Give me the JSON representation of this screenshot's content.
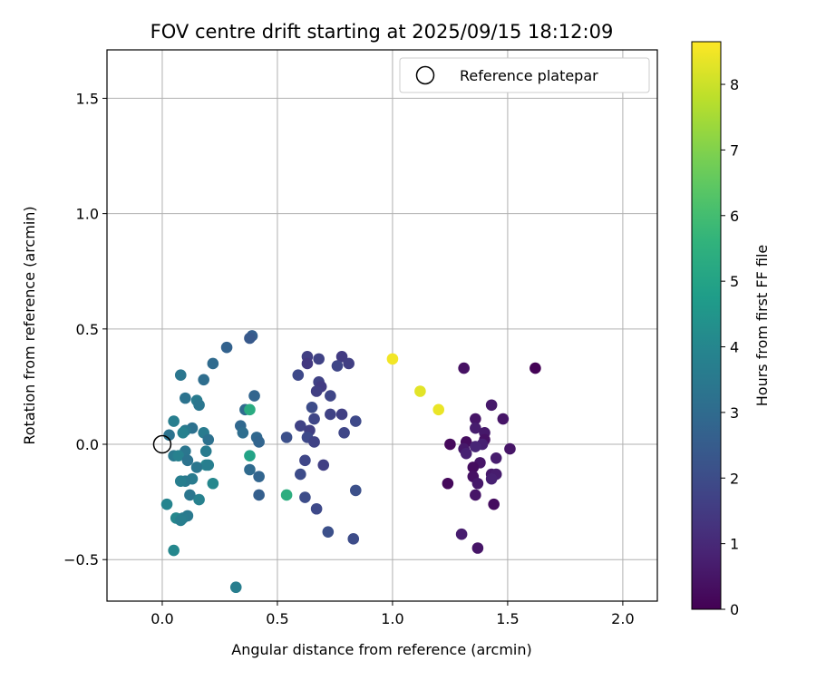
{
  "chart_data": {
    "type": "scatter",
    "title": "FOV centre drift starting at 2025/09/15 18:12:09",
    "xlabel": "Angular distance from reference (arcmin)",
    "ylabel": "Rotation from reference (arcmin)",
    "xlim": [
      -0.24,
      2.15
    ],
    "ylim": [
      -0.68,
      1.71
    ],
    "xticks": [
      0.0,
      0.5,
      1.0,
      1.5,
      2.0
    ],
    "xtick_labels": [
      "0.0",
      "0.5",
      "1.0",
      "1.5",
      "2.0"
    ],
    "yticks": [
      -0.5,
      0.0,
      0.5,
      1.0,
      1.5
    ],
    "ytick_labels": [
      "−0.5",
      "0.0",
      "0.5",
      "1.0",
      "1.5"
    ],
    "grid": true,
    "legend": {
      "position": "top-right",
      "entries": [
        "Reference platepar"
      ]
    },
    "reference_point": {
      "x": 0.0,
      "y": 0.0,
      "label": "Reference platepar"
    },
    "colorbar": {
      "label": "Hours from first FF file",
      "colormap": "viridis",
      "range": [
        0,
        8.65
      ],
      "ticks": [
        0,
        1,
        2,
        3,
        4,
        5,
        6,
        7,
        8
      ],
      "tick_labels": [
        "0",
        "1",
        "2",
        "3",
        "4",
        "5",
        "6",
        "7",
        "8"
      ]
    },
    "points": [
      {
        "x": 1.62,
        "y": 0.33,
        "h": 0.05
      },
      {
        "x": 1.31,
        "y": 0.33,
        "h": 0.4
      },
      {
        "x": 1.43,
        "y": 0.17,
        "h": 0.6
      },
      {
        "x": 1.48,
        "y": 0.11,
        "h": 0.5
      },
      {
        "x": 1.36,
        "y": 0.11,
        "h": 0.5
      },
      {
        "x": 1.36,
        "y": 0.07,
        "h": 0.7
      },
      {
        "x": 1.4,
        "y": 0.05,
        "h": 0.6
      },
      {
        "x": 1.4,
        "y": 0.02,
        "h": 0.4
      },
      {
        "x": 1.32,
        "y": 0.01,
        "h": 0.3
      },
      {
        "x": 1.39,
        "y": 0.0,
        "h": 0.8
      },
      {
        "x": 1.25,
        "y": 0.0,
        "h": 0.2
      },
      {
        "x": 1.36,
        "y": -0.01,
        "h": 0.9
      },
      {
        "x": 1.31,
        "y": -0.02,
        "h": 0.6
      },
      {
        "x": 1.51,
        "y": -0.02,
        "h": 0.5
      },
      {
        "x": 1.32,
        "y": -0.04,
        "h": 0.8
      },
      {
        "x": 1.45,
        "y": -0.06,
        "h": 0.7
      },
      {
        "x": 1.38,
        "y": -0.08,
        "h": 0.5
      },
      {
        "x": 1.35,
        "y": -0.1,
        "h": 0.3
      },
      {
        "x": 1.43,
        "y": -0.13,
        "h": 0.6
      },
      {
        "x": 1.45,
        "y": -0.13,
        "h": 0.7
      },
      {
        "x": 1.35,
        "y": -0.14,
        "h": 0.4
      },
      {
        "x": 1.43,
        "y": -0.15,
        "h": 0.8
      },
      {
        "x": 1.24,
        "y": -0.17,
        "h": 0.2
      },
      {
        "x": 1.37,
        "y": -0.17,
        "h": 0.6
      },
      {
        "x": 1.36,
        "y": -0.22,
        "h": 0.5
      },
      {
        "x": 1.44,
        "y": -0.26,
        "h": 0.3
      },
      {
        "x": 1.3,
        "y": -0.39,
        "h": 0.7
      },
      {
        "x": 1.37,
        "y": -0.45,
        "h": 0.5
      },
      {
        "x": 1.0,
        "y": 0.37,
        "h": 8.5
      },
      {
        "x": 1.12,
        "y": 0.23,
        "h": 8.3
      },
      {
        "x": 1.2,
        "y": 0.15,
        "h": 8.4
      },
      {
        "x": 0.63,
        "y": 0.38,
        "h": 1.6
      },
      {
        "x": 0.78,
        "y": 0.38,
        "h": 1.5
      },
      {
        "x": 0.68,
        "y": 0.37,
        "h": 1.7
      },
      {
        "x": 0.63,
        "y": 0.35,
        "h": 1.4
      },
      {
        "x": 0.81,
        "y": 0.35,
        "h": 1.6
      },
      {
        "x": 0.76,
        "y": 0.34,
        "h": 1.8
      },
      {
        "x": 0.59,
        "y": 0.3,
        "h": 1.9
      },
      {
        "x": 0.68,
        "y": 0.27,
        "h": 1.7
      },
      {
        "x": 0.69,
        "y": 0.25,
        "h": 1.5
      },
      {
        "x": 0.67,
        "y": 0.23,
        "h": 1.6
      },
      {
        "x": 0.73,
        "y": 0.21,
        "h": 1.8
      },
      {
        "x": 0.65,
        "y": 0.16,
        "h": 2.0
      },
      {
        "x": 0.73,
        "y": 0.13,
        "h": 1.7
      },
      {
        "x": 0.78,
        "y": 0.13,
        "h": 1.6
      },
      {
        "x": 0.66,
        "y": 0.11,
        "h": 1.8
      },
      {
        "x": 0.84,
        "y": 0.1,
        "h": 1.9
      },
      {
        "x": 0.6,
        "y": 0.08,
        "h": 1.7
      },
      {
        "x": 0.64,
        "y": 0.06,
        "h": 1.6
      },
      {
        "x": 0.79,
        "y": 0.05,
        "h": 1.8
      },
      {
        "x": 0.54,
        "y": 0.03,
        "h": 2.1
      },
      {
        "x": 0.63,
        "y": 0.03,
        "h": 1.9
      },
      {
        "x": 0.66,
        "y": 0.01,
        "h": 1.7
      },
      {
        "x": 0.62,
        "y": -0.07,
        "h": 1.8
      },
      {
        "x": 0.7,
        "y": -0.09,
        "h": 1.6
      },
      {
        "x": 0.6,
        "y": -0.13,
        "h": 2.0
      },
      {
        "x": 0.84,
        "y": -0.2,
        "h": 2.1
      },
      {
        "x": 0.62,
        "y": -0.23,
        "h": 2.0
      },
      {
        "x": 0.67,
        "y": -0.28,
        "h": 1.9
      },
      {
        "x": 0.72,
        "y": -0.38,
        "h": 2.1
      },
      {
        "x": 0.83,
        "y": -0.41,
        "h": 2.0
      },
      {
        "x": 0.39,
        "y": 0.47,
        "h": 2.6
      },
      {
        "x": 0.38,
        "y": 0.46,
        "h": 2.4
      },
      {
        "x": 0.28,
        "y": 0.42,
        "h": 2.7
      },
      {
        "x": 0.22,
        "y": 0.35,
        "h": 3.0
      },
      {
        "x": 0.08,
        "y": 0.3,
        "h": 3.4
      },
      {
        "x": 0.18,
        "y": 0.28,
        "h": 3.1
      },
      {
        "x": 0.4,
        "y": 0.21,
        "h": 2.8
      },
      {
        "x": 0.1,
        "y": 0.2,
        "h": 3.3
      },
      {
        "x": 0.15,
        "y": 0.19,
        "h": 3.6
      },
      {
        "x": 0.16,
        "y": 0.17,
        "h": 3.4
      },
      {
        "x": 0.36,
        "y": 0.15,
        "h": 3.0
      },
      {
        "x": 0.38,
        "y": 0.15,
        "h": 5.3
      },
      {
        "x": 0.05,
        "y": 0.1,
        "h": 3.7
      },
      {
        "x": 0.34,
        "y": 0.08,
        "h": 2.9
      },
      {
        "x": 0.13,
        "y": 0.07,
        "h": 3.2
      },
      {
        "x": 0.1,
        "y": 0.06,
        "h": 3.5
      },
      {
        "x": 0.09,
        "y": 0.05,
        "h": 3.8
      },
      {
        "x": 0.18,
        "y": 0.05,
        "h": 3.6
      },
      {
        "x": 0.35,
        "y": 0.05,
        "h": 3.1
      },
      {
        "x": 0.03,
        "y": 0.04,
        "h": 3.3
      },
      {
        "x": 0.41,
        "y": 0.03,
        "h": 2.9
      },
      {
        "x": 0.2,
        "y": 0.02,
        "h": 3.2
      },
      {
        "x": 0.42,
        "y": 0.01,
        "h": 2.8
      },
      {
        "x": 0.1,
        "y": -0.03,
        "h": 3.4
      },
      {
        "x": 0.19,
        "y": -0.03,
        "h": 3.6
      },
      {
        "x": 0.38,
        "y": -0.05,
        "h": 5.0
      },
      {
        "x": 0.05,
        "y": -0.05,
        "h": 3.5
      },
      {
        "x": 0.07,
        "y": -0.05,
        "h": 3.8
      },
      {
        "x": 0.11,
        "y": -0.07,
        "h": 3.3
      },
      {
        "x": 0.19,
        "y": -0.09,
        "h": 3.9
      },
      {
        "x": 0.2,
        "y": -0.09,
        "h": 3.7
      },
      {
        "x": 0.15,
        "y": -0.1,
        "h": 3.4
      },
      {
        "x": 0.38,
        "y": -0.11,
        "h": 3.0
      },
      {
        "x": 0.42,
        "y": -0.14,
        "h": 2.8
      },
      {
        "x": 0.13,
        "y": -0.15,
        "h": 3.6
      },
      {
        "x": 0.1,
        "y": -0.16,
        "h": 3.5
      },
      {
        "x": 0.08,
        "y": -0.16,
        "h": 3.7
      },
      {
        "x": 0.22,
        "y": -0.17,
        "h": 4.0
      },
      {
        "x": 0.12,
        "y": -0.22,
        "h": 3.4
      },
      {
        "x": 0.42,
        "y": -0.22,
        "h": 2.6
      },
      {
        "x": 0.54,
        "y": -0.22,
        "h": 5.4
      },
      {
        "x": 0.16,
        "y": -0.24,
        "h": 3.8
      },
      {
        "x": 0.02,
        "y": -0.26,
        "h": 3.9
      },
      {
        "x": 0.11,
        "y": -0.31,
        "h": 3.5
      },
      {
        "x": 0.09,
        "y": -0.32,
        "h": 3.6
      },
      {
        "x": 0.06,
        "y": -0.32,
        "h": 4.0
      },
      {
        "x": 0.08,
        "y": -0.33,
        "h": 3.7
      },
      {
        "x": 0.05,
        "y": -0.46,
        "h": 4.0
      },
      {
        "x": 0.32,
        "y": -0.62,
        "h": 3.7
      }
    ]
  }
}
